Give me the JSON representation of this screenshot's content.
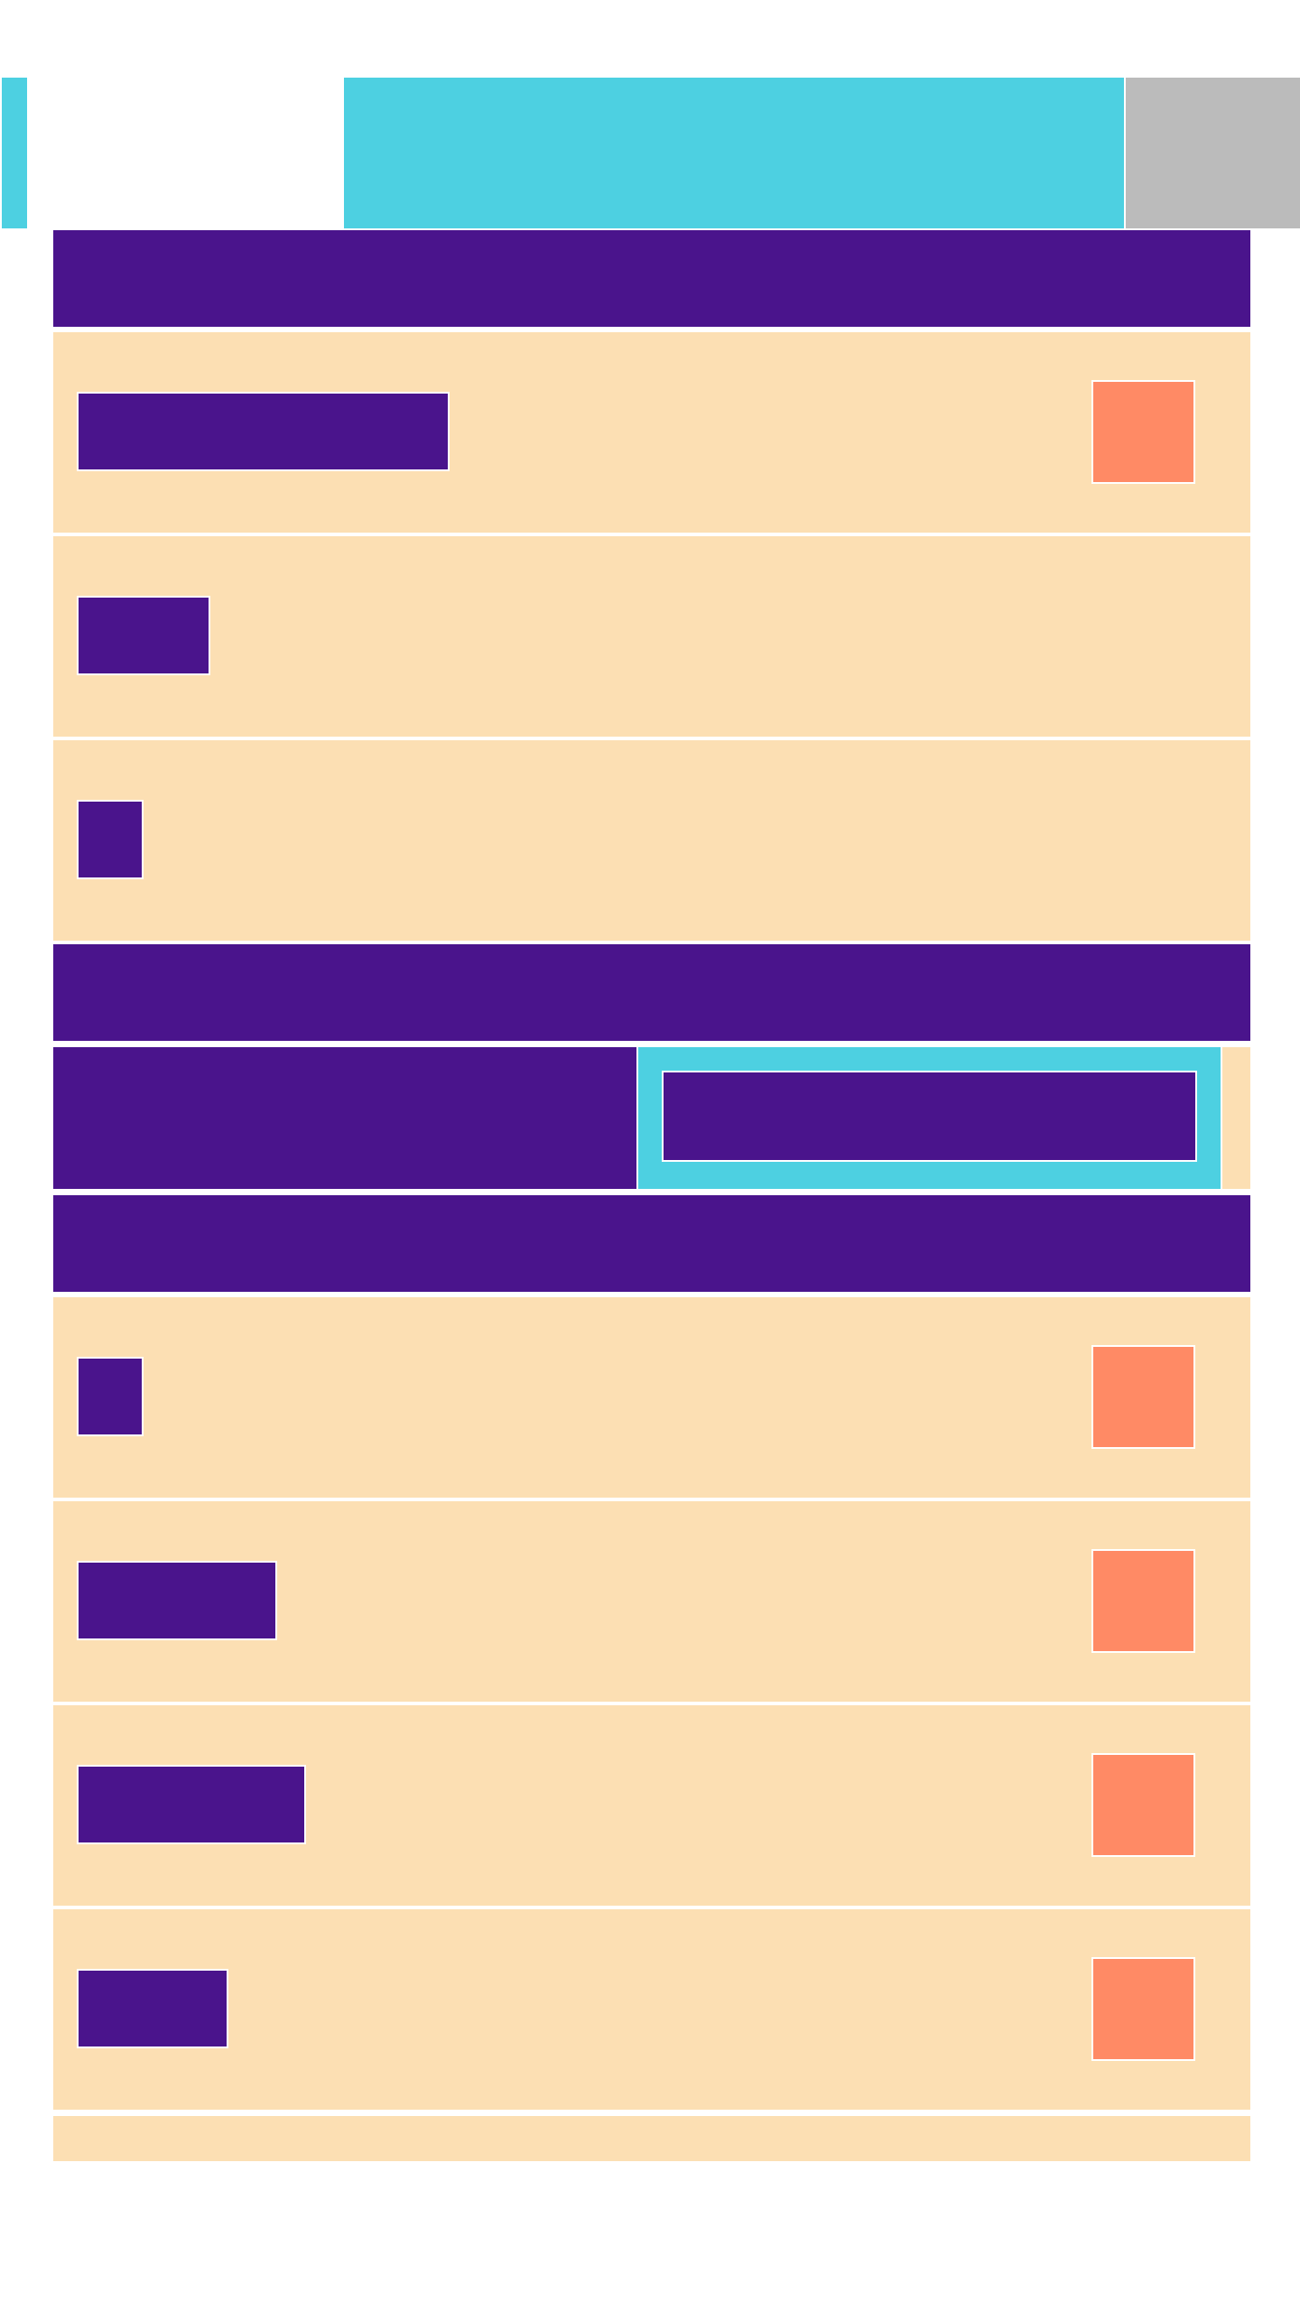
{
  "colors": {
    "accent_cyan": "#4dd0e1",
    "header_purple": "#4a148c",
    "row_cream": "#fcdfb3",
    "action_salmon": "#ff8a65",
    "neutral_gray": "#bbbbbb"
  },
  "top_bar": {
    "title": ""
  },
  "section_1": {
    "header": "",
    "rows": [
      {
        "label": "",
        "has_action": true
      },
      {
        "label": "",
        "has_action": false
      },
      {
        "label": "",
        "has_action": false
      }
    ]
  },
  "section_2": {
    "header": "",
    "field_value": "",
    "field_placeholder": ""
  },
  "section_3": {
    "header": "",
    "rows": [
      {
        "label": "",
        "has_action": true
      },
      {
        "label": "",
        "has_action": true
      },
      {
        "label": "",
        "has_action": true
      },
      {
        "label": "",
        "has_action": true
      }
    ]
  }
}
